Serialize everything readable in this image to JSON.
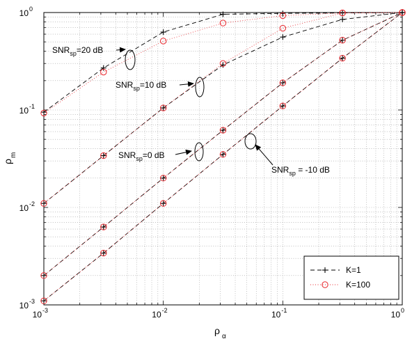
{
  "chart_data": {
    "type": "line",
    "xscale": "log",
    "yscale": "log",
    "xlim": [
      0.001,
      1
    ],
    "ylim": [
      0.001,
      1
    ],
    "grid": true,
    "xlabel": {
      "main": "ρ",
      "sub": "α"
    },
    "ylabel": {
      "main": "ρ",
      "sub": "m"
    },
    "xticks": [
      {
        "value": 0.001,
        "base": "10",
        "exp": "-3"
      },
      {
        "value": 0.01,
        "base": "10",
        "exp": "-2"
      },
      {
        "value": 0.1,
        "base": "10",
        "exp": "-1"
      },
      {
        "value": 1,
        "base": "10",
        "exp": "0"
      }
    ],
    "yticks": [
      {
        "value": 0.001,
        "base": "10",
        "exp": "-3"
      },
      {
        "value": 0.01,
        "base": "10",
        "exp": "-2"
      },
      {
        "value": 0.1,
        "base": "10",
        "exp": "-1"
      },
      {
        "value": 1,
        "base": "10",
        "exp": "0"
      }
    ],
    "x": [
      0.001,
      0.00316,
      0.01,
      0.0316,
      0.1,
      0.316,
      1
    ],
    "series": [
      {
        "name": "K=1",
        "group": "SNR_sp=20 dB",
        "style": "plus",
        "values": [
          0.095,
          0.27,
          0.63,
          0.96,
          0.98,
          0.99,
          1.0
        ]
      },
      {
        "name": "K=100",
        "group": "SNR_sp=20 dB",
        "style": "circle",
        "values": [
          0.093,
          0.245,
          0.51,
          0.78,
          0.93,
          0.99,
          1.0
        ]
      },
      {
        "name": "K=1",
        "group": "SNR_sp=10 dB",
        "style": "plus",
        "values": [
          0.011,
          0.034,
          0.105,
          0.29,
          0.56,
          0.85,
          1.0
        ]
      },
      {
        "name": "K=100",
        "group": "SNR_sp=10 dB",
        "style": "circle",
        "values": [
          0.011,
          0.034,
          0.105,
          0.3,
          0.69,
          0.99,
          1.0
        ]
      },
      {
        "name": "K=1",
        "group": "SNR_sp=0 dB",
        "style": "plus",
        "values": [
          0.002,
          0.0063,
          0.02,
          0.062,
          0.19,
          0.52,
          1.0
        ]
      },
      {
        "name": "K=100",
        "group": "SNR_sp=0 dB",
        "style": "circle",
        "values": [
          0.002,
          0.0063,
          0.02,
          0.062,
          0.19,
          0.52,
          1.0
        ]
      },
      {
        "name": "K=1",
        "group": "SNR_sp=-10 dB",
        "style": "plus",
        "values": [
          0.0011,
          0.0034,
          0.011,
          0.035,
          0.11,
          0.34,
          1.0
        ]
      },
      {
        "name": "K=100",
        "group": "SNR_sp=-10 dB",
        "style": "circle",
        "values": [
          0.0011,
          0.0034,
          0.011,
          0.035,
          0.11,
          0.34,
          1.0
        ]
      }
    ],
    "legend": {
      "placement": "bottom-right",
      "entries": [
        {
          "label": "K=1",
          "style": "plus"
        },
        {
          "label": "K=100",
          "style": "circle"
        }
      ]
    },
    "annotations": [
      {
        "pre": "SNR",
        "sub": "sp",
        "post": "=20 dB"
      },
      {
        "pre": "SNR",
        "sub": "sp",
        "post": "=10 dB"
      },
      {
        "pre": "SNR",
        "sub": "sp",
        "post": "=0 dB"
      },
      {
        "pre": "SNR",
        "sub": "sp",
        "post": " = -10 dB"
      }
    ],
    "colors": {
      "line": "#000000",
      "marker_circle": "#e8262c",
      "marker_plus": "#000000",
      "grid": "#9a9a9a"
    }
  }
}
